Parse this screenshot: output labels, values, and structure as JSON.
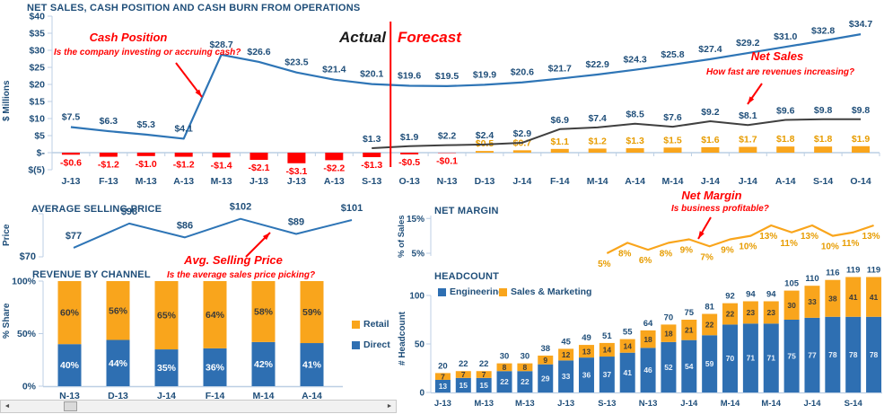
{
  "colors": {
    "navy": "#1F4E79",
    "line_blue": "#2E75B6",
    "bar_blue": "#2E6FB2",
    "orange": "#F9A51C",
    "orange_text": "#E79C00",
    "red": "#FF0000",
    "black_line": "#404040",
    "axis": "#BCCFE4",
    "white_label": "#FFFFFF",
    "dark_label": "#3A3A3A"
  },
  "icons": {
    "scrollbar_left": "◄",
    "scrollbar_right": "►"
  },
  "chart_data": [
    {
      "type": "combo",
      "title": "NET SALES, CASH POSITION AND CASH BURN FROM OPERATIONS",
      "ylabel": "$ Millions",
      "y_axis": {
        "labels": [
          "$40",
          "$35",
          "$30",
          "$25",
          "$20",
          "$15",
          "$10",
          "$5",
          "$-",
          "$(5)"
        ],
        "values": [
          40,
          35,
          30,
          25,
          20,
          15,
          10,
          5,
          0,
          -5
        ]
      },
      "categories": [
        "J-13",
        "F-13",
        "M-13",
        "A-13",
        "M-13",
        "J-13",
        "J-13",
        "A-13",
        "S-13",
        "O-13",
        "N-13",
        "D-13",
        "J-14",
        "F-14",
        "M-14",
        "A-14",
        "M-14",
        "J-14",
        "J-14",
        "A-14",
        "S-14",
        "O-14"
      ],
      "series": [
        {
          "name": "Cash Position",
          "type": "line",
          "values": [
            7.5,
            6.3,
            5.3,
            4.1,
            28.7,
            26.6,
            23.5,
            21.4,
            20.1,
            19.6,
            19.5,
            19.9,
            20.6,
            21.7,
            22.9,
            24.3,
            25.8,
            27.4,
            29.2,
            31.0,
            32.8,
            34.7
          ]
        },
        {
          "name": "Net Sales",
          "type": "line",
          "start_index": 8,
          "values": [
            1.3,
            1.9,
            2.2,
            2.4,
            2.9,
            6.9,
            7.4,
            8.5,
            7.6,
            9.2,
            8.1,
            9.6,
            9.8,
            9.8
          ]
        },
        {
          "name": "Cash Burn",
          "type": "bar",
          "values": [
            -0.6,
            -1.2,
            -1.0,
            -1.2,
            -1.4,
            -2.1,
            -3.1,
            -2.2,
            -1.3,
            -0.5,
            -0.1,
            0.5,
            0.7,
            1.1,
            1.2,
            1.3,
            1.5,
            1.6,
            1.7,
            1.8,
            1.8,
            1.9
          ]
        }
      ],
      "divider": {
        "actual_label": "Actual",
        "forecast_label": "Forecast",
        "boundary_index": 9
      },
      "annotations": [
        {
          "title": "Cash Position",
          "question": "Is the company investing or accruing cash?"
        },
        {
          "title": "Net Sales",
          "question": "How fast are revenues increasing?"
        }
      ]
    },
    {
      "type": "line",
      "title": "AVERAGE SELLING PRICE",
      "ylabel": "Price",
      "y_tick_labels": [
        "$70"
      ],
      "values": [
        77,
        98,
        86,
        102,
        89,
        101
      ],
      "annotation": {
        "title": "Avg. Selling Price",
        "question": "Is the average sales price picking?"
      }
    },
    {
      "type": "line",
      "title": "NET MARGIN",
      "ylabel": "% of Sales",
      "y_tick_labels": [
        "15%",
        "5%"
      ],
      "y_tick_values": [
        15,
        5
      ],
      "start_index": 8,
      "n_slots": 22,
      "values": [
        5,
        8,
        6,
        8,
        9,
        7,
        9,
        10,
        13,
        11,
        13,
        10,
        11,
        13
      ],
      "annotation": {
        "title": "Net Margin",
        "question": "Is business profitable?"
      }
    },
    {
      "type": "stacked-bar-100",
      "title": "REVENUE BY CHANNEL",
      "ylabel": "% Share",
      "y_tick_labels": [
        "100%",
        "50%",
        "0%"
      ],
      "categories": [
        "N-13",
        "D-13",
        "J-14",
        "F-14",
        "M-14",
        "A-14"
      ],
      "series": [
        {
          "name": "Direct",
          "values": [
            40,
            44,
            35,
            36,
            42,
            41
          ]
        },
        {
          "name": "Retail",
          "values": [
            60,
            56,
            65,
            64,
            58,
            59
          ]
        }
      ]
    },
    {
      "type": "stacked-bar",
      "title": "HEADCOUNT",
      "ylabel": "# Headcount",
      "y_tick_labels": [
        "100",
        "50",
        "0"
      ],
      "y_tick_values": [
        100,
        50,
        0
      ],
      "categories": [
        "J-13",
        "F-13",
        "M-13",
        "A-13",
        "M-13",
        "J-13",
        "J-13",
        "A-13",
        "S-13",
        "O-13",
        "N-13",
        "D-13",
        "J-14",
        "F-14",
        "M-14",
        "A-14",
        "M-14",
        "J-14",
        "J-14",
        "A-14",
        "S-14",
        "O-14"
      ],
      "series": [
        {
          "name": "Engineering",
          "values": [
            13,
            15,
            15,
            22,
            22,
            29,
            33,
            36,
            37,
            41,
            46,
            52,
            54,
            59,
            70,
            71,
            71,
            75,
            77,
            78,
            78,
            78
          ]
        },
        {
          "name": "Sales & Marketing",
          "values": [
            7,
            7,
            7,
            8,
            8,
            9,
            12,
            13,
            14,
            14,
            18,
            18,
            21,
            22,
            22,
            23,
            23,
            30,
            33,
            38,
            41,
            41
          ]
        }
      ],
      "totals": [
        20,
        22,
        22,
        30,
        30,
        38,
        45,
        49,
        51,
        55,
        64,
        70,
        75,
        81,
        92,
        94,
        94,
        105,
        110,
        116,
        119,
        119
      ]
    }
  ]
}
